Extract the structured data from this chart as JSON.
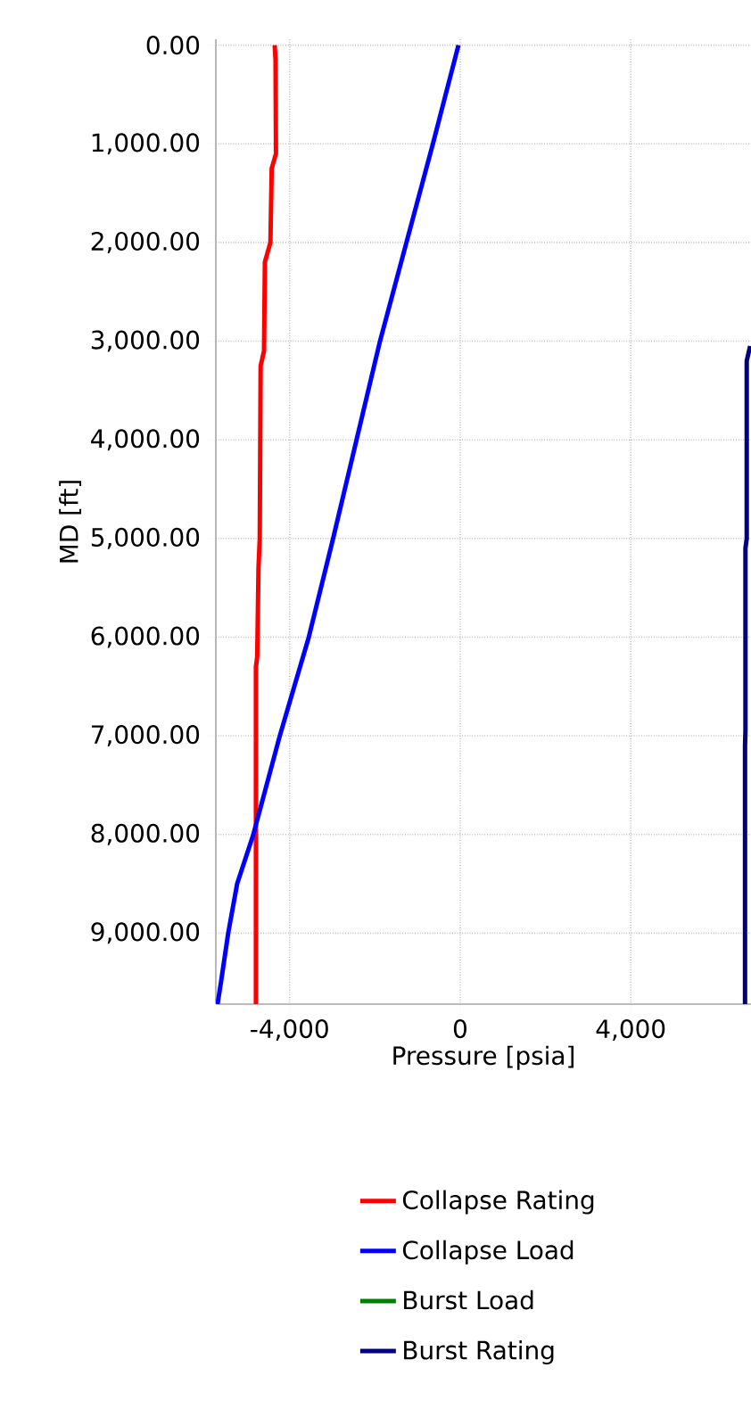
{
  "chart_data": {
    "type": "line",
    "xlabel": "Pressure [psia]",
    "ylabel": "MD [ft]",
    "xlim": [
      -5730,
      6820
    ],
    "ylim": [
      9720,
      -60
    ],
    "xticks": [
      {
        "value": -4000,
        "label": "-4,000"
      },
      0,
      {
        "value": 4000,
        "label": "4,000"
      }
    ],
    "yticks": [
      {
        "value": 0,
        "label": "0.00"
      },
      {
        "value": 1000,
        "label": "1,000.00"
      },
      {
        "value": 2000,
        "label": "2,000.00"
      },
      {
        "value": 3000,
        "label": "3,000.00"
      },
      {
        "value": 4000,
        "label": "4,000.00"
      },
      {
        "value": 5000,
        "label": "5,000.00"
      },
      {
        "value": 6000,
        "label": "6,000.00"
      },
      {
        "value": 7000,
        "label": "7,000.00"
      },
      {
        "value": 8000,
        "label": "8,000.00"
      },
      {
        "value": 9000,
        "label": "9,000.00"
      }
    ],
    "grid": true,
    "legend": "bottom",
    "marker": "none",
    "line_style": "solid",
    "series": [
      {
        "name": "Collapse Rating",
        "color": "#ff0000",
        "x": [
          -4350,
          -4330,
          -4320,
          -4420,
          -4450,
          -4580,
          -4600,
          -4680,
          -4700,
          -4730,
          -4760,
          -4790,
          -4790
        ],
        "values": [
          0,
          150,
          1100,
          1250,
          2000,
          2200,
          3100,
          3250,
          5000,
          5300,
          6200,
          6300,
          9720
        ]
      },
      {
        "name": "Collapse Load",
        "color": "#0000ff",
        "x": [
          -40,
          -640,
          -1260,
          -1880,
          -2430,
          -2980,
          -3550,
          -4230,
          -4850,
          -5230,
          -5440,
          -5610,
          -5690
        ],
        "values": [
          0,
          1000,
          2000,
          3000,
          4000,
          5000,
          6000,
          7000,
          8000,
          8500,
          9000,
          9500,
          9720
        ]
      },
      {
        "name": "Burst Load",
        "color": "#008000"
      },
      {
        "name": "Burst Rating",
        "color": "#000080",
        "x": [
          6800,
          6720,
          6720,
          6690,
          6690,
          6680,
          6680
        ],
        "values": [
          3050,
          3200,
          5000,
          5100,
          6950,
          7100,
          9720
        ]
      }
    ]
  }
}
